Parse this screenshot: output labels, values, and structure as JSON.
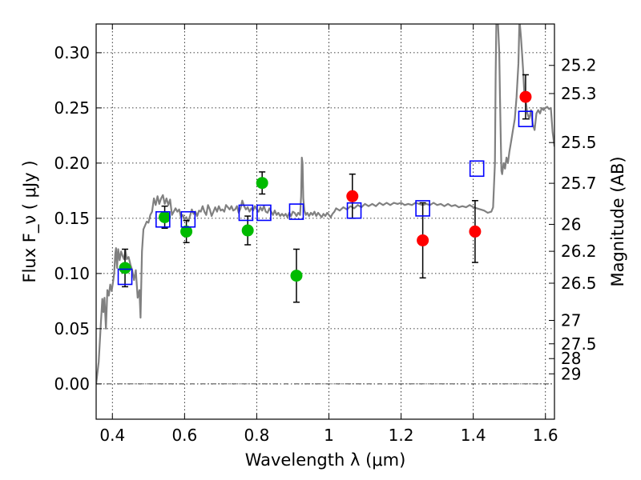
{
  "chart_data": {
    "type": "scatter",
    "title": "",
    "xlabel": "Wavelength  λ (μm)",
    "ylabel": "Flux  F_ν  ( μJy )",
    "ylabel_right": "Magnitude (AB)",
    "xlim": [
      0.355,
      1.625
    ],
    "ylim": [
      -0.032,
      0.326
    ],
    "grid": true,
    "x_ticks": [
      {
        "v": 0.4,
        "label": "0.4"
      },
      {
        "v": 0.6,
        "label": "0.6"
      },
      {
        "v": 0.8,
        "label": "0.8"
      },
      {
        "v": 1.0,
        "label": "1"
      },
      {
        "v": 1.2,
        "label": "1.2"
      },
      {
        "v": 1.4,
        "label": "1.4"
      },
      {
        "v": 1.6,
        "label": "1.6"
      }
    ],
    "y_ticks": [
      {
        "v": 0.0,
        "label": "0.00"
      },
      {
        "v": 0.05,
        "label": "0.05"
      },
      {
        "v": 0.1,
        "label": "0.10"
      },
      {
        "v": 0.15,
        "label": "0.15"
      },
      {
        "v": 0.2,
        "label": "0.20"
      },
      {
        "v": 0.25,
        "label": "0.25"
      },
      {
        "v": 0.3,
        "label": "0.30"
      }
    ],
    "mag_ticks": [
      {
        "v": 0.2885,
        "label": "25.2"
      },
      {
        "v": 0.263,
        "label": "25.3"
      },
      {
        "v": 0.2186,
        "label": "25.5"
      },
      {
        "v": 0.1817,
        "label": "25.7"
      },
      {
        "v": 0.1445,
        "label": "26"
      },
      {
        "v": 0.1201,
        "label": "26.2"
      },
      {
        "v": 0.0912,
        "label": "26.5"
      },
      {
        "v": 0.0575,
        "label": "27"
      },
      {
        "v": 0.0363,
        "label": "27.5"
      },
      {
        "v": 0.0229,
        "label": "28"
      },
      {
        "v": 0.0091,
        "label": "29"
      }
    ],
    "model_spectrum": {
      "name": "model SED",
      "color": "#808080",
      "points": [
        [
          0.355,
          0.0
        ],
        [
          0.362,
          0.02
        ],
        [
          0.368,
          0.055
        ],
        [
          0.372,
          0.077
        ],
        [
          0.375,
          0.065
        ],
        [
          0.378,
          0.078
        ],
        [
          0.382,
          0.05
        ],
        [
          0.386,
          0.085
        ],
        [
          0.39,
          0.08
        ],
        [
          0.394,
          0.09
        ],
        [
          0.398,
          0.084
        ],
        [
          0.402,
          0.093
        ],
        [
          0.405,
          0.1
        ],
        [
          0.408,
          0.118
        ],
        [
          0.41,
          0.123
        ],
        [
          0.413,
          0.105
        ],
        [
          0.416,
          0.122
        ],
        [
          0.42,
          0.112
        ],
        [
          0.424,
          0.12
        ],
        [
          0.428,
          0.116
        ],
        [
          0.432,
          0.113
        ],
        [
          0.436,
          0.121
        ],
        [
          0.44,
          0.113
        ],
        [
          0.445,
          0.115
        ],
        [
          0.45,
          0.108
        ],
        [
          0.455,
          0.103
        ],
        [
          0.46,
          0.094
        ],
        [
          0.465,
          0.103
        ],
        [
          0.47,
          0.078
        ],
        [
          0.475,
          0.085
        ],
        [
          0.478,
          0.06
        ],
        [
          0.482,
          0.12
        ],
        [
          0.486,
          0.14
        ],
        [
          0.49,
          0.143
        ],
        [
          0.495,
          0.147
        ],
        [
          0.5,
          0.146
        ],
        [
          0.505,
          0.153
        ],
        [
          0.51,
          0.156
        ],
        [
          0.515,
          0.168
        ],
        [
          0.52,
          0.162
        ],
        [
          0.525,
          0.17
        ],
        [
          0.53,
          0.163
        ],
        [
          0.535,
          0.168
        ],
        [
          0.54,
          0.171
        ],
        [
          0.545,
          0.163
        ],
        [
          0.55,
          0.168
        ],
        [
          0.555,
          0.162
        ],
        [
          0.56,
          0.167
        ],
        [
          0.565,
          0.153
        ],
        [
          0.57,
          0.156
        ],
        [
          0.575,
          0.159
        ],
        [
          0.58,
          0.156
        ],
        [
          0.585,
          0.158
        ],
        [
          0.59,
          0.151
        ],
        [
          0.595,
          0.153
        ],
        [
          0.6,
          0.149
        ],
        [
          0.605,
          0.151
        ],
        [
          0.61,
          0.147
        ],
        [
          0.615,
          0.152
        ],
        [
          0.62,
          0.158
        ],
        [
          0.625,
          0.154
        ],
        [
          0.63,
          0.156
        ],
        [
          0.635,
          0.152
        ],
        [
          0.64,
          0.157
        ],
        [
          0.645,
          0.156
        ],
        [
          0.65,
          0.161
        ],
        [
          0.655,
          0.156
        ],
        [
          0.66,
          0.153
        ],
        [
          0.665,
          0.162
        ],
        [
          0.67,
          0.158
        ],
        [
          0.675,
          0.152
        ],
        [
          0.68,
          0.156
        ],
        [
          0.685,
          0.16
        ],
        [
          0.69,
          0.156
        ],
        [
          0.695,
          0.161
        ],
        [
          0.7,
          0.157
        ],
        [
          0.705,
          0.158
        ],
        [
          0.71,
          0.156
        ],
        [
          0.715,
          0.162
        ],
        [
          0.72,
          0.16
        ],
        [
          0.725,
          0.158
        ],
        [
          0.73,
          0.161
        ],
        [
          0.735,
          0.157
        ],
        [
          0.74,
          0.158
        ],
        [
          0.745,
          0.161
        ],
        [
          0.75,
          0.155
        ],
        [
          0.755,
          0.159
        ],
        [
          0.76,
          0.166
        ],
        [
          0.765,
          0.161
        ],
        [
          0.77,
          0.158
        ],
        [
          0.775,
          0.16
        ],
        [
          0.78,
          0.156
        ],
        [
          0.785,
          0.159
        ],
        [
          0.79,
          0.157
        ],
        [
          0.795,
          0.161
        ],
        [
          0.8,
          0.158
        ],
        [
          0.805,
          0.156
        ],
        [
          0.81,
          0.16
        ],
        [
          0.815,
          0.157
        ],
        [
          0.82,
          0.161
        ],
        [
          0.825,
          0.156
        ],
        [
          0.83,
          0.155
        ],
        [
          0.835,
          0.159
        ],
        [
          0.84,
          0.156
        ],
        [
          0.845,
          0.153
        ],
        [
          0.85,
          0.157
        ],
        [
          0.855,
          0.153
        ],
        [
          0.86,
          0.155
        ],
        [
          0.865,
          0.152
        ],
        [
          0.87,
          0.154
        ],
        [
          0.875,
          0.152
        ],
        [
          0.88,
          0.154
        ],
        [
          0.885,
          0.151
        ],
        [
          0.89,
          0.155
        ],
        [
          0.895,
          0.152
        ],
        [
          0.9,
          0.156
        ],
        [
          0.905,
          0.155
        ],
        [
          0.91,
          0.152
        ],
        [
          0.915,
          0.155
        ],
        [
          0.92,
          0.153
        ],
        [
          0.923,
          0.17
        ],
        [
          0.925,
          0.205
        ],
        [
          0.927,
          0.2
        ],
        [
          0.929,
          0.168
        ],
        [
          0.932,
          0.157
        ],
        [
          0.936,
          0.153
        ],
        [
          0.94,
          0.155
        ],
        [
          0.945,
          0.152
        ],
        [
          0.95,
          0.155
        ],
        [
          0.955,
          0.153
        ],
        [
          0.96,
          0.156
        ],
        [
          0.965,
          0.152
        ],
        [
          0.97,
          0.155
        ],
        [
          0.975,
          0.153
        ],
        [
          0.98,
          0.151
        ],
        [
          0.985,
          0.154
        ],
        [
          0.99,
          0.152
        ],
        [
          0.995,
          0.155
        ],
        [
          1.0,
          0.153
        ],
        [
          1.005,
          0.151
        ],
        [
          1.01,
          0.154
        ],
        [
          1.015,
          0.156
        ],
        [
          1.02,
          0.159
        ],
        [
          1.03,
          0.157
        ],
        [
          1.04,
          0.16
        ],
        [
          1.05,
          0.158
        ],
        [
          1.06,
          0.161
        ],
        [
          1.07,
          0.159
        ],
        [
          1.08,
          0.162
        ],
        [
          1.09,
          0.16
        ],
        [
          1.1,
          0.163
        ],
        [
          1.11,
          0.161
        ],
        [
          1.12,
          0.163
        ],
        [
          1.13,
          0.161
        ],
        [
          1.14,
          0.164
        ],
        [
          1.15,
          0.162
        ],
        [
          1.16,
          0.164
        ],
        [
          1.17,
          0.162
        ],
        [
          1.18,
          0.164
        ],
        [
          1.19,
          0.163
        ],
        [
          1.2,
          0.164
        ],
        [
          1.21,
          0.162
        ],
        [
          1.22,
          0.163
        ],
        [
          1.23,
          0.162
        ],
        [
          1.24,
          0.164
        ],
        [
          1.25,
          0.163
        ],
        [
          1.26,
          0.162
        ],
        [
          1.27,
          0.163
        ],
        [
          1.28,
          0.162
        ],
        [
          1.29,
          0.164
        ],
        [
          1.3,
          0.162
        ],
        [
          1.31,
          0.163
        ],
        [
          1.32,
          0.161
        ],
        [
          1.33,
          0.163
        ],
        [
          1.34,
          0.161
        ],
        [
          1.35,
          0.162
        ],
        [
          1.36,
          0.16
        ],
        [
          1.37,
          0.161
        ],
        [
          1.38,
          0.16
        ],
        [
          1.39,
          0.162
        ],
        [
          1.4,
          0.16
        ],
        [
          1.41,
          0.159
        ],
        [
          1.42,
          0.158
        ],
        [
          1.43,
          0.157
        ],
        [
          1.44,
          0.155
        ],
        [
          1.45,
          0.156
        ],
        [
          1.455,
          0.16
        ],
        [
          1.46,
          0.2
        ],
        [
          1.462,
          0.28
        ],
        [
          1.464,
          0.33
        ],
        [
          1.468,
          0.33
        ],
        [
          1.472,
          0.3
        ],
        [
          1.474,
          0.26
        ],
        [
          1.476,
          0.225
        ],
        [
          1.478,
          0.193
        ],
        [
          1.48,
          0.19
        ],
        [
          1.484,
          0.2
        ],
        [
          1.488,
          0.195
        ],
        [
          1.492,
          0.205
        ],
        [
          1.496,
          0.2
        ],
        [
          1.5,
          0.21
        ],
        [
          1.505,
          0.22
        ],
        [
          1.51,
          0.23
        ],
        [
          1.515,
          0.24
        ],
        [
          1.52,
          0.26
        ],
        [
          1.525,
          0.29
        ],
        [
          1.528,
          0.33
        ],
        [
          1.532,
          0.315
        ],
        [
          1.535,
          0.3
        ],
        [
          1.538,
          0.285
        ],
        [
          1.542,
          0.26
        ],
        [
          1.546,
          0.255
        ],
        [
          1.55,
          0.245
        ],
        [
          1.555,
          0.24
        ],
        [
          1.56,
          0.248
        ],
        [
          1.565,
          0.235
        ],
        [
          1.57,
          0.23
        ],
        [
          1.575,
          0.245
        ],
        [
          1.58,
          0.248
        ],
        [
          1.585,
          0.245
        ],
        [
          1.59,
          0.25
        ],
        [
          1.595,
          0.248
        ],
        [
          1.6,
          0.25
        ],
        [
          1.605,
          0.251
        ],
        [
          1.61,
          0.249
        ],
        [
          1.615,
          0.25
        ],
        [
          1.62,
          0.228
        ],
        [
          1.625,
          0.215
        ]
      ]
    },
    "series": [
      {
        "name": "green photometry",
        "color": "#00bb00",
        "points": [
          {
            "x": 0.435,
            "y": 0.105,
            "err": 0.017
          },
          {
            "x": 0.545,
            "y": 0.151,
            "err": 0.01
          },
          {
            "x": 0.605,
            "y": 0.138,
            "err": 0.01
          },
          {
            "x": 0.775,
            "y": 0.139,
            "err": 0.013
          },
          {
            "x": 0.815,
            "y": 0.182,
            "err": 0.01
          },
          {
            "x": 0.91,
            "y": 0.098,
            "err": 0.024
          }
        ]
      },
      {
        "name": "red photometry",
        "color": "#ff0000",
        "points": [
          {
            "x": 1.065,
            "y": 0.17,
            "err": 0.02
          },
          {
            "x": 1.26,
            "y": 0.13,
            "err": 0.034
          },
          {
            "x": 1.405,
            "y": 0.138,
            "err": 0.028
          },
          {
            "x": 1.545,
            "y": 0.26,
            "err": 0.02
          }
        ]
      },
      {
        "name": "model photometry",
        "color": "#0000ff",
        "marker": "open-square",
        "points": [
          {
            "x": 0.435,
            "y": 0.097
          },
          {
            "x": 0.54,
            "y": 0.149
          },
          {
            "x": 0.61,
            "y": 0.149
          },
          {
            "x": 0.77,
            "y": 0.155
          },
          {
            "x": 0.82,
            "y": 0.155
          },
          {
            "x": 0.91,
            "y": 0.156
          },
          {
            "x": 1.07,
            "y": 0.157
          },
          {
            "x": 1.26,
            "y": 0.159
          },
          {
            "x": 1.41,
            "y": 0.195
          },
          {
            "x": 1.545,
            "y": 0.24
          }
        ]
      }
    ]
  }
}
